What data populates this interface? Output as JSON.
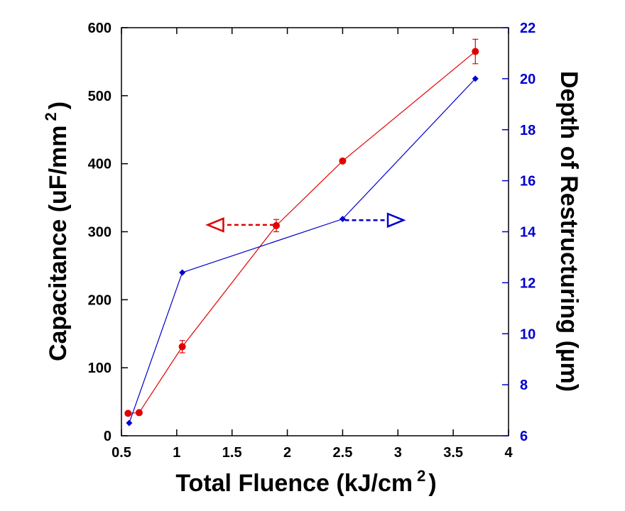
{
  "chart_data": {
    "type": "line",
    "xlabel": "Total Fluence (kJ/cm",
    "xlabel_sup": "2",
    "xlabel_close": ")",
    "ylabel_left": "Capacitance (uF/mm",
    "ylabel_left_sup": "2",
    "ylabel_left_close": ")",
    "ylabel_right": "Depth of Restructuring (µm)",
    "xlim": [
      0.5,
      4
    ],
    "ylim_left": [
      0,
      600
    ],
    "ylim_right": [
      6,
      22
    ],
    "x_ticks": [
      "0.5",
      "1",
      "1.5",
      "2",
      "2.5",
      "3",
      "3.5",
      "4"
    ],
    "y_left_ticks": [
      "0",
      "100",
      "200",
      "300",
      "400",
      "500",
      "600"
    ],
    "y_right_ticks": [
      "6",
      "8",
      "10",
      "12",
      "14",
      "16",
      "18",
      "20",
      "22"
    ],
    "grid": false,
    "series": [
      {
        "axis": "left",
        "color": "#e00000",
        "marker": "circle",
        "x": [
          0.56,
          0.66,
          1.05,
          1.9,
          2.5,
          3.7
        ],
        "y": [
          33,
          34,
          131,
          309,
          404,
          565
        ],
        "error": [
          0,
          0,
          9,
          9,
          0,
          18
        ]
      },
      {
        "axis": "right",
        "color": "#0000cc",
        "marker": "diamond",
        "x": [
          0.57,
          1.05,
          2.5,
          3.7
        ],
        "y": [
          6.5,
          12.4,
          14.5,
          20.0
        ]
      }
    ],
    "annotations": [
      {
        "type": "arrow-left",
        "color": "#e00000",
        "x_from": 1.88,
        "x_to": 1.28,
        "y_left": 310
      },
      {
        "type": "arrow-right",
        "color": "#0000cc",
        "x_from": 2.52,
        "x_to": 3.05,
        "y_left": 317
      }
    ]
  }
}
